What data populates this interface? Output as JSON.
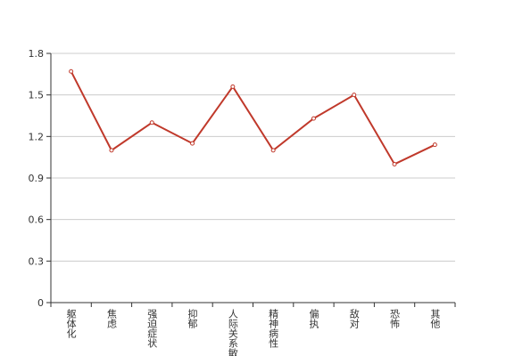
{
  "chart_data": {
    "type": "line",
    "categories": [
      "躯体化",
      "焦虑",
      "强迫症状",
      "抑郁",
      "人际关系敏感",
      "精神病性",
      "偏执",
      "敌对",
      "恐怖",
      "其他"
    ],
    "values": [
      1.67,
      1.1,
      1.3,
      1.15,
      1.56,
      1.1,
      1.33,
      1.5,
      1.0,
      1.14
    ],
    "color": "#c0392b",
    "ylim": [
      0,
      1.8
    ],
    "yticks": [
      0,
      0.3,
      0.6,
      0.9,
      1.2,
      1.5,
      1.8
    ],
    "grid": true
  }
}
